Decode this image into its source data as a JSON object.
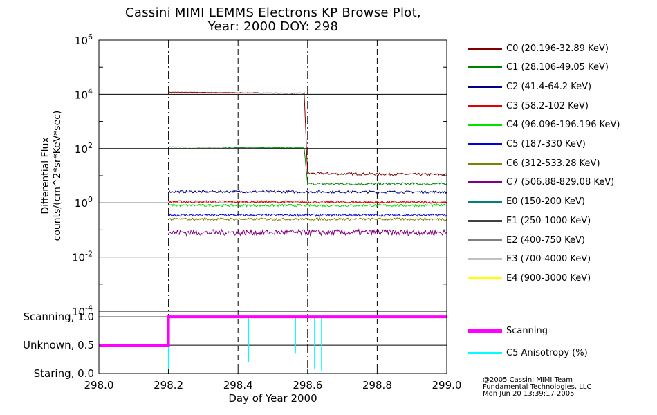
{
  "title_line1": "Cassini MIMI LEMMS Electrons KP Browse Plot,",
  "title_line2": "Year: 2000 DOY: 298",
  "legend_top": [
    {
      "label": "C0 (20.196-32.89 KeV)",
      "color": "#800000"
    },
    {
      "label": "C1 (28.106-49.05 KeV)",
      "color": "#008000"
    },
    {
      "label": "C2 (41.4-64.2 KeV)",
      "color": "#000080"
    },
    {
      "label": "C3 (58.2-102 KeV)",
      "color": "#e00000"
    },
    {
      "label": "C4 (96.096-196.196 KeV)",
      "color": "#00e000"
    },
    {
      "label": "C5 (187-330 KeV)",
      "color": "#0000e0"
    },
    {
      "label": "C6 (312-533.28 KeV)",
      "color": "#808000"
    },
    {
      "label": "C7 (506.88-829.08 KeV)",
      "color": "#800080"
    },
    {
      "label": "E0 (150-200 KeV)",
      "color": "#008080"
    },
    {
      "label": "E1 (250-1000 KeV)",
      "color": "#404040"
    },
    {
      "label": "E2 (400-750 KeV)",
      "color": "#808080"
    },
    {
      "label": "E3 (700-4000 KeV)",
      "color": "#c0c0c0"
    },
    {
      "label": "E4 (900-3000 KeV)",
      "color": "#ffff00"
    }
  ],
  "legend_bottom": [
    {
      "label": "Scanning",
      "color": "#ff00ff"
    },
    {
      "label": "C5 Anisotropy (%)",
      "color": "#00ffff"
    }
  ],
  "credits": [
    "@2005 Cassini MIMI Team",
    "Fundamental Technologies, LLC",
    "Mon Jun 20 13:39:17 2005"
  ],
  "chart_data": [
    {
      "type": "line",
      "title": "Cassini MIMI LEMMS Electrons KP Browse Plot, Year: 2000 DOY: 298",
      "ylabel": "Differential Flux counts/(cm^2*sr*KeV*sec)",
      "yscale": "log",
      "ylim": [
        0.0001,
        1000000
      ],
      "xlim": [
        298.0,
        299.0
      ],
      "y_ticks": [
        {
          "base": "10",
          "exp": "6",
          "value": 1000000
        },
        {
          "base": "10",
          "exp": "4",
          "value": 10000
        },
        {
          "base": "10",
          "exp": "2",
          "value": 100
        },
        {
          "base": "10",
          "exp": "0",
          "value": 1
        },
        {
          "base": "10",
          "exp": "-2",
          "value": 0.01
        },
        {
          "base": "10",
          "exp": "-4",
          "value": 0.0001
        }
      ],
      "vertical_markers": [
        298.2,
        298.4,
        298.6,
        298.8
      ],
      "grid": true,
      "series": [
        {
          "name": "C0 (20.196-32.89 KeV)",
          "x": [
            298.2,
            298.59,
            298.6,
            299.0
          ],
          "y": [
            12000,
            11000,
            12,
            11
          ]
        },
        {
          "name": "C1 (28.106-49.05 KeV)",
          "x": [
            298.2,
            298.59,
            298.6,
            299.0
          ],
          "y": [
            115,
            105,
            5,
            5
          ]
        },
        {
          "name": "C2 (41.4-64.2 KeV)",
          "x": [
            298.2,
            299.0
          ],
          "y": [
            2.6,
            2.5
          ]
        },
        {
          "name": "C3 (58.2-102 KeV)",
          "x": [
            298.2,
            299.0
          ],
          "y": [
            1.1,
            1.05
          ]
        },
        {
          "name": "C4 (96.096-196.196 KeV)",
          "x": [
            298.2,
            299.0
          ],
          "y": [
            0.8,
            0.8
          ]
        },
        {
          "name": "C5 (187-330 KeV)",
          "x": [
            298.2,
            299.0
          ],
          "y": [
            0.35,
            0.35
          ]
        },
        {
          "name": "C6 (312-533.28 KeV)",
          "x": [
            298.2,
            299.0
          ],
          "y": [
            0.25,
            0.25
          ]
        },
        {
          "name": "C7 (506.88-829.08 KeV)",
          "x": [
            298.2,
            299.0
          ],
          "y": [
            0.08,
            0.08
          ]
        }
      ]
    },
    {
      "type": "line",
      "xlabel": "Day of Year 2000",
      "xlim": [
        298.0,
        299.0
      ],
      "ylim": [
        0.0,
        1.1
      ],
      "x_ticks": [
        "298.0",
        "298.2",
        "298.4",
        "298.6",
        "298.8",
        "299.0"
      ],
      "y_ticks": [
        {
          "label": "Scanning, 1.0",
          "value": 1.0
        },
        {
          "label": "Unknown, 0.5",
          "value": 0.5
        },
        {
          "label": "Staring, 0.0",
          "value": 0.0
        }
      ],
      "series": [
        {
          "name": "Scanning",
          "x": [
            298.0,
            298.2,
            298.2,
            299.0
          ],
          "y": [
            0.5,
            0.5,
            1.0,
            1.0
          ]
        },
        {
          "name": "C5 Anisotropy (%)",
          "spike_x": [
            298.43,
            298.565,
            298.62,
            298.64
          ],
          "spike_min": [
            0.2,
            0.35,
            0.08,
            0.05
          ]
        }
      ]
    }
  ]
}
